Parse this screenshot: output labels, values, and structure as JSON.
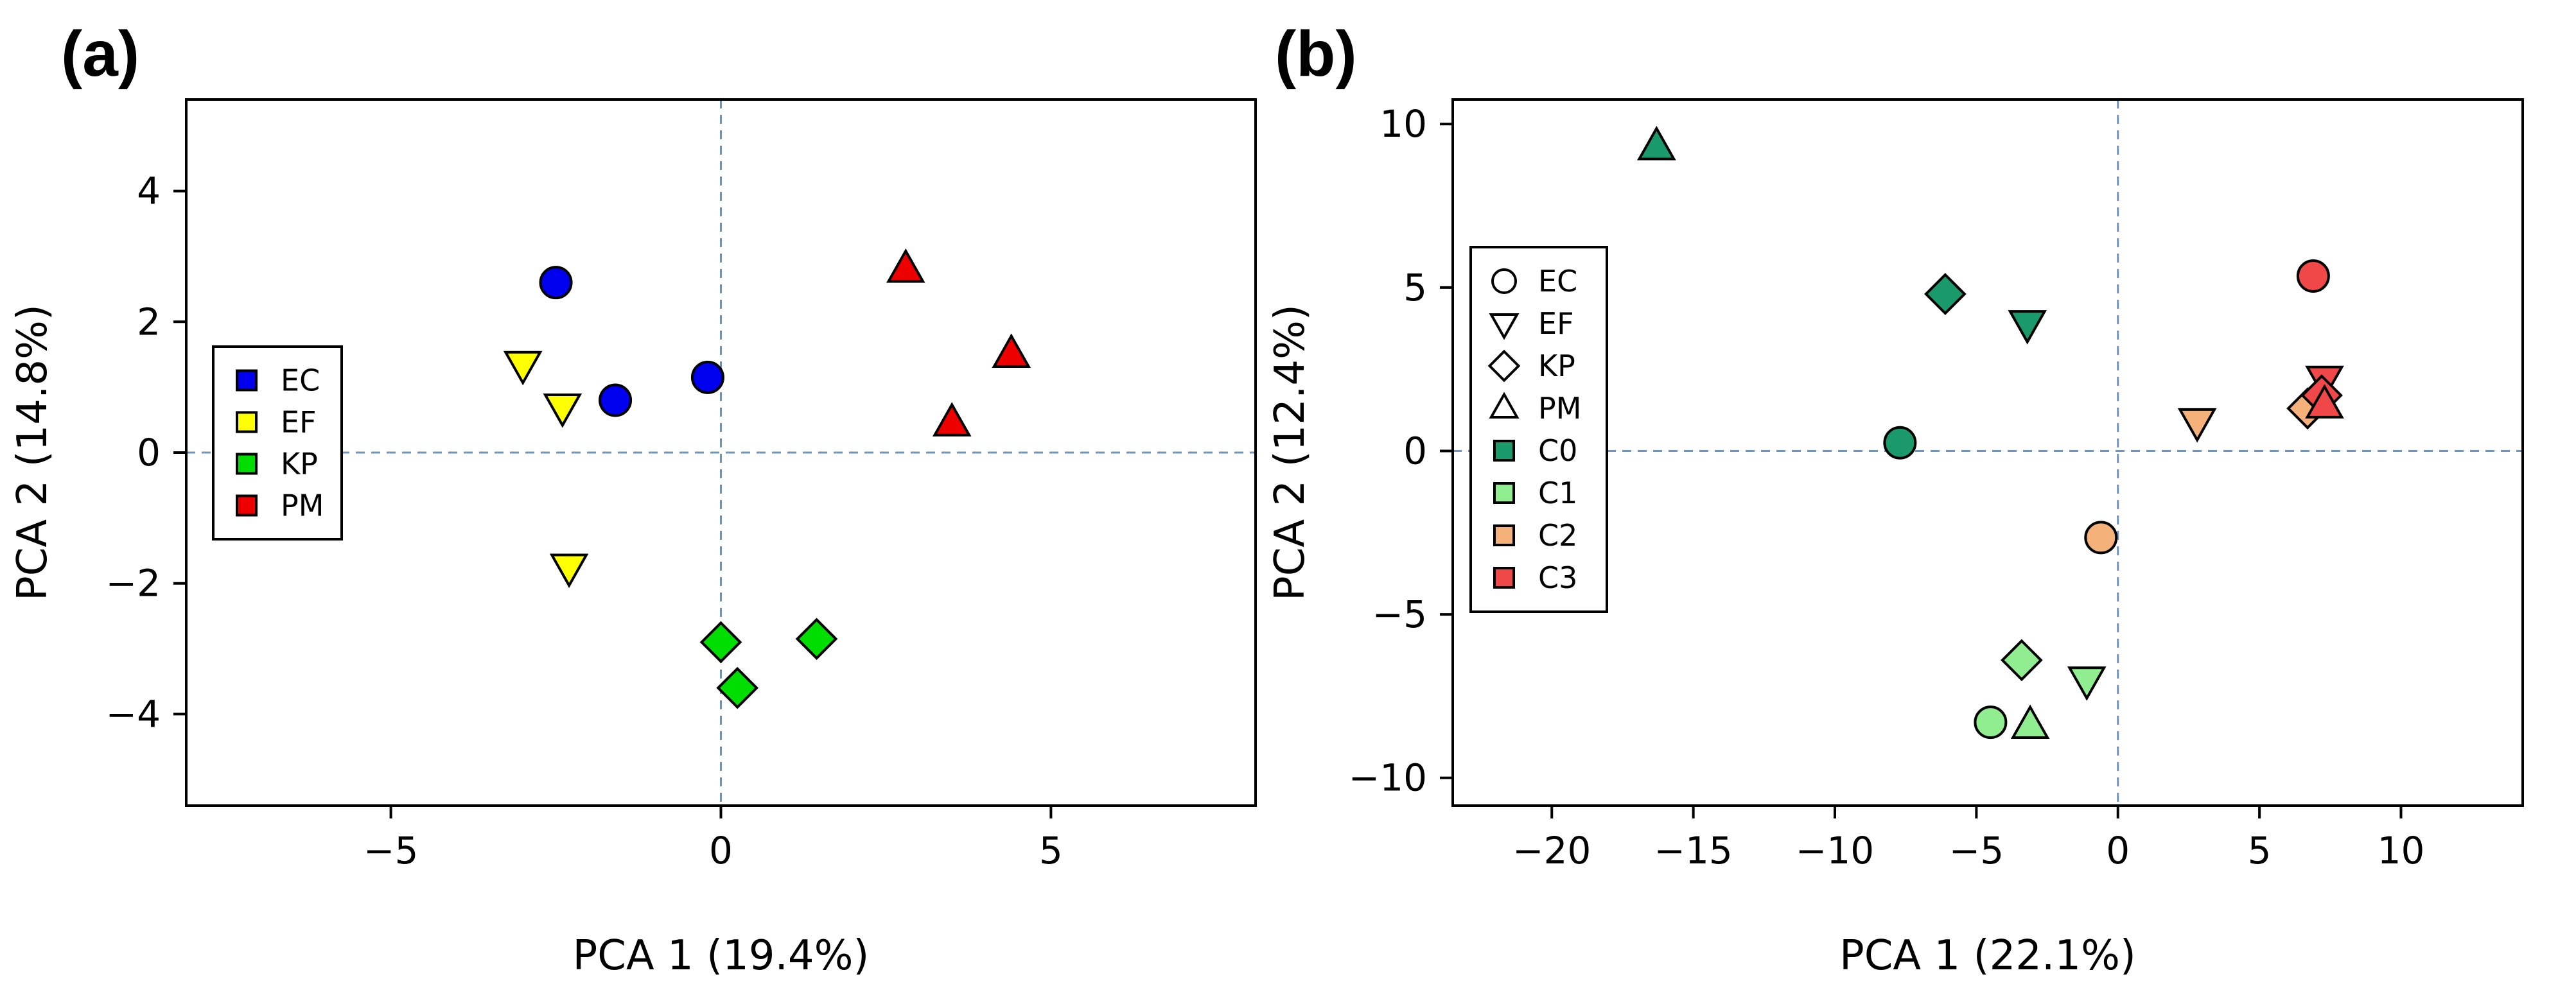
{
  "chart_data": [
    {
      "type": "scatter",
      "panel_label": "(a)",
      "xlabel": "PCA 1 (19.4%)",
      "ylabel": "PCA 2 (14.8%)",
      "xlim": [
        -8.1,
        8.1
      ],
      "ylim": [
        -5.4,
        5.4
      ],
      "xticks": [
        -5,
        0,
        5
      ],
      "yticks": [
        -4,
        -2,
        0,
        2,
        4
      ],
      "xtick_labels": [
        "−5",
        "0",
        "5"
      ],
      "ytick_labels": [
        "−4",
        "−2",
        "0",
        "2",
        "4"
      ],
      "reference_lines": {
        "x": 0,
        "y": 0
      },
      "legend": {
        "location": "center-left",
        "entries": [
          {
            "label": "EC",
            "kind": "square",
            "color": "#0000ee"
          },
          {
            "label": "EF",
            "kind": "square",
            "color": "#ffff00"
          },
          {
            "label": "KP",
            "kind": "square",
            "color": "#00dd00"
          },
          {
            "label": "PM",
            "kind": "square",
            "color": "#ee0000"
          }
        ]
      },
      "series": [
        {
          "name": "EC",
          "shape": "circle",
          "color": "#0000ee",
          "points": [
            [
              -2.5,
              2.6
            ],
            [
              -1.6,
              0.8
            ],
            [
              -0.2,
              1.15
            ]
          ]
        },
        {
          "name": "EF",
          "shape": "triangle-down",
          "color": "#ffff00",
          "points": [
            [
              -3.0,
              1.35
            ],
            [
              -2.4,
              0.7
            ],
            [
              -2.3,
              -1.75
            ]
          ]
        },
        {
          "name": "KP",
          "shape": "diamond",
          "color": "#00dd00",
          "points": [
            [
              0.0,
              -2.9
            ],
            [
              0.25,
              -3.6
            ],
            [
              1.45,
              -2.85
            ]
          ]
        },
        {
          "name": "PM",
          "shape": "triangle-up",
          "color": "#ee0000",
          "points": [
            [
              2.8,
              2.8
            ],
            [
              4.4,
              1.5
            ],
            [
              3.5,
              0.45
            ]
          ]
        }
      ]
    },
    {
      "type": "scatter",
      "panel_label": "(b)",
      "xlabel": "PCA 1 (22.1%)",
      "ylabel": "PCA 2 (12.4%)",
      "xlim": [
        -23.5,
        14.3
      ],
      "ylim": [
        -10.85,
        10.75
      ],
      "xticks": [
        -20,
        -15,
        -10,
        -5,
        0,
        5,
        10
      ],
      "yticks": [
        -10,
        -5,
        0,
        5,
        10
      ],
      "xtick_labels": [
        "−20",
        "−15",
        "−10",
        "−5",
        "0",
        "5",
        "10"
      ],
      "ytick_labels": [
        "−10",
        "−5",
        "0",
        "5",
        "10"
      ],
      "reference_lines": {
        "x": 0,
        "y": 0
      },
      "legend": {
        "location": "center-left",
        "entries": [
          {
            "label": "EC",
            "kind": "circle",
            "color": "#ffffff"
          },
          {
            "label": "EF",
            "kind": "triangle-down",
            "color": "#ffffff"
          },
          {
            "label": "KP",
            "kind": "diamond",
            "color": "#ffffff"
          },
          {
            "label": "PM",
            "kind": "triangle-up",
            "color": "#ffffff"
          },
          {
            "label": "C0",
            "kind": "square",
            "color": "#1a9a6b"
          },
          {
            "label": "C1",
            "kind": "square",
            "color": "#90ee90"
          },
          {
            "label": "C2",
            "kind": "square",
            "color": "#f4b27a"
          },
          {
            "label": "C3",
            "kind": "square",
            "color": "#f04848"
          }
        ]
      },
      "series": [
        {
          "name": "C0",
          "color": "#1a9a6b",
          "points": [
            {
              "x": -16.3,
              "y": 9.3,
              "shape": "triangle-up"
            },
            {
              "x": -6.1,
              "y": 4.8,
              "shape": "diamond"
            },
            {
              "x": -3.2,
              "y": 3.9,
              "shape": "triangle-down"
            },
            {
              "x": -7.7,
              "y": 0.25,
              "shape": "circle"
            }
          ]
        },
        {
          "name": "C1",
          "color": "#90ee90",
          "points": [
            {
              "x": -3.4,
              "y": -6.4,
              "shape": "diamond"
            },
            {
              "x": -1.1,
              "y": -7.0,
              "shape": "triangle-down"
            },
            {
              "x": -4.5,
              "y": -8.3,
              "shape": "circle"
            },
            {
              "x": -3.1,
              "y": -8.4,
              "shape": "triangle-up"
            }
          ]
        },
        {
          "name": "C2",
          "color": "#f4b27a",
          "points": [
            {
              "x": -0.6,
              "y": -2.65,
              "shape": "circle"
            },
            {
              "x": 2.8,
              "y": 0.9,
              "shape": "triangle-down"
            },
            {
              "x": 6.7,
              "y": 1.3,
              "shape": "diamond"
            }
          ]
        },
        {
          "name": "C3",
          "color": "#f04848",
          "points": [
            {
              "x": 6.9,
              "y": 5.35,
              "shape": "circle"
            },
            {
              "x": 7.3,
              "y": 2.2,
              "shape": "triangle-down"
            },
            {
              "x": 7.2,
              "y": 1.7,
              "shape": "diamond"
            },
            {
              "x": 7.3,
              "y": 1.4,
              "shape": "triangle-up"
            }
          ]
        }
      ]
    }
  ]
}
